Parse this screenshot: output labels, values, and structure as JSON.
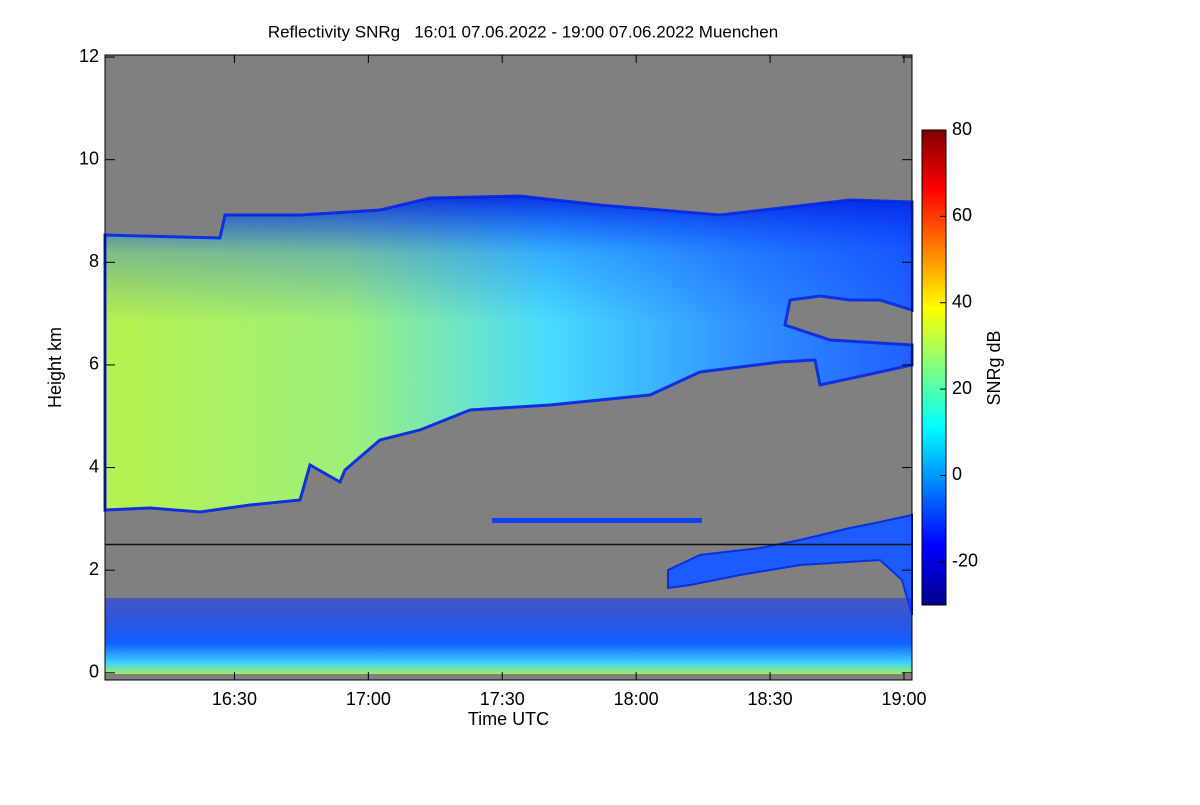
{
  "chart_data": {
    "type": "heatmap",
    "title": "Reflectivity SNRg   16:01 07.06.2022 - 19:00 07.06.2022 Muenchen",
    "x_label": "Time UTC",
    "y_label": "Height km",
    "xlim": [
      16.0167,
      19.03
    ],
    "xticks": [
      {
        "value": 16.5,
        "label": "16:30"
      },
      {
        "value": 17,
        "label": "17:00"
      },
      {
        "value": 17.5,
        "label": "17:30"
      },
      {
        "value": 18,
        "label": "18:00"
      },
      {
        "value": 18.5,
        "label": "18:30"
      },
      {
        "value": 19,
        "label": "19:00"
      }
    ],
    "ylim": [
      -0.14,
      12.04
    ],
    "yticks": [
      0,
      2,
      4,
      6,
      8,
      10,
      12
    ],
    "reference_line": 2.5,
    "colorbar": {
      "label": "SNRg dB",
      "lim": [
        -30,
        80
      ],
      "ticks": [
        -20,
        0,
        20,
        40,
        60,
        80
      ],
      "colormap": [
        "#00008f",
        "#0000ff",
        "#007fff",
        "#00ffff",
        "#7fff7f",
        "#ffff00",
        "#ff7f00",
        "#ff0000",
        "#7f0000"
      ]
    }
  }
}
